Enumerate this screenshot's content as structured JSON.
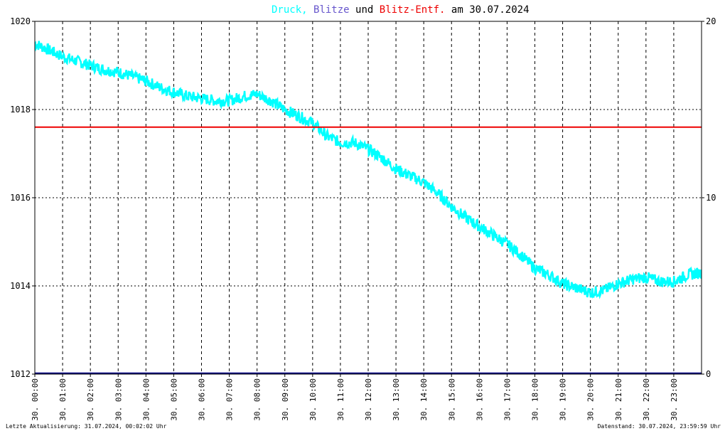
{
  "title": {
    "part1": "Druck,",
    "part2": "Blitze",
    "part3": "und",
    "part4": "Blitz-Entf.",
    "part5": "am 30.07.2024"
  },
  "colors": {
    "pressure": "#00ffff",
    "lightning": "#6655cc",
    "distance": "#ee0000",
    "text": "#000000",
    "baseline": "#000080"
  },
  "footer": {
    "left": "Letzte Aktualisierung: 31.07.2024, 00:02:02 Uhr",
    "right": "Datenstand: 30.07.2024, 23:59:59 Uhr"
  },
  "chart_data": {
    "type": "line",
    "y_left_ticks": [
      "1012",
      "1014",
      "1016",
      "1018",
      "1020"
    ],
    "y_right_ticks": [
      "0",
      "10",
      "20"
    ],
    "ylim_left": [
      1012,
      1020
    ],
    "ylim_right": [
      0,
      20
    ],
    "x_tick_labels": [
      "30. 00:00",
      "30. 01:00",
      "30. 02:00",
      "30. 03:00",
      "30. 04:00",
      "30. 05:00",
      "30. 06:00",
      "30. 07:00",
      "30. 08:00",
      "30. 09:00",
      "30. 10:00",
      "30. 11:00",
      "30. 12:00",
      "30. 13:00",
      "30. 14:00",
      "30. 15:00",
      "30. 16:00",
      "30. 17:00",
      "30. 18:00",
      "30. 19:00",
      "30. 20:00",
      "30. 21:00",
      "30. 22:00",
      "30. 23:00"
    ],
    "grid": true,
    "series": [
      {
        "name": "Druck",
        "axis": "left",
        "x_hours": [
          0,
          0.5,
          1,
          1.5,
          2,
          2.5,
          3,
          3.5,
          4,
          4.5,
          5,
          5.5,
          6,
          6.5,
          7,
          7.5,
          8,
          8.5,
          9,
          9.5,
          10,
          10.5,
          11,
          11.5,
          12,
          12.5,
          13,
          13.5,
          14,
          14.5,
          15,
          15.5,
          16,
          16.5,
          17,
          17.5,
          18,
          18.5,
          19,
          19.5,
          20,
          20.5,
          21,
          21.5,
          22,
          22.5,
          23,
          23.5,
          24
        ],
        "values": [
          1019.5,
          1019.35,
          1019.2,
          1019.1,
          1019.0,
          1018.9,
          1018.85,
          1018.75,
          1018.65,
          1018.5,
          1018.4,
          1018.3,
          1018.25,
          1018.2,
          1018.2,
          1018.3,
          1018.35,
          1018.2,
          1018.0,
          1017.85,
          1017.7,
          1017.4,
          1017.25,
          1017.25,
          1017.1,
          1016.9,
          1016.65,
          1016.5,
          1016.35,
          1016.1,
          1015.8,
          1015.55,
          1015.35,
          1015.15,
          1014.95,
          1014.7,
          1014.4,
          1014.25,
          1014.05,
          1013.95,
          1013.85,
          1013.9,
          1014.05,
          1014.15,
          1014.2,
          1014.1,
          1014.1,
          1014.25,
          1014.3
        ]
      },
      {
        "name": "Blitz-Entf.",
        "axis": "right",
        "x_hours": [
          0,
          24
        ],
        "values": [
          14,
          14
        ]
      },
      {
        "name": "Blitze",
        "axis": "right",
        "x_hours": [
          0,
          24
        ],
        "values": [
          0,
          0
        ]
      }
    ]
  }
}
